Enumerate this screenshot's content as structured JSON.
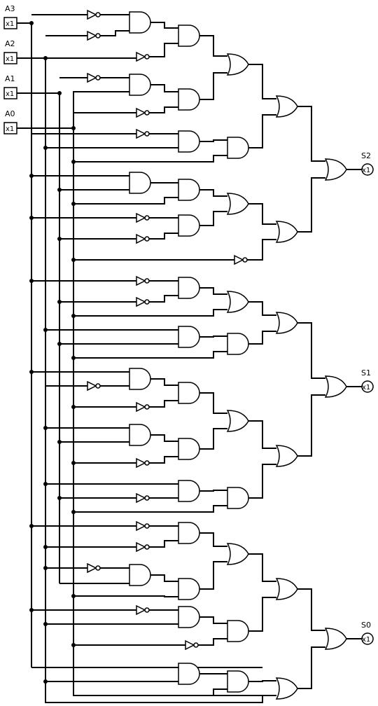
{
  "inputs": [
    {
      "name": "A3",
      "value": "x1"
    },
    {
      "name": "A2",
      "value": "x1"
    },
    {
      "name": "A1",
      "value": "x1"
    },
    {
      "name": "A0",
      "value": "x1"
    }
  ],
  "outputs": [
    {
      "name": "S2",
      "value": "x1"
    },
    {
      "name": "S1",
      "value": "x1"
    },
    {
      "name": "S0",
      "value": "x1"
    }
  ]
}
